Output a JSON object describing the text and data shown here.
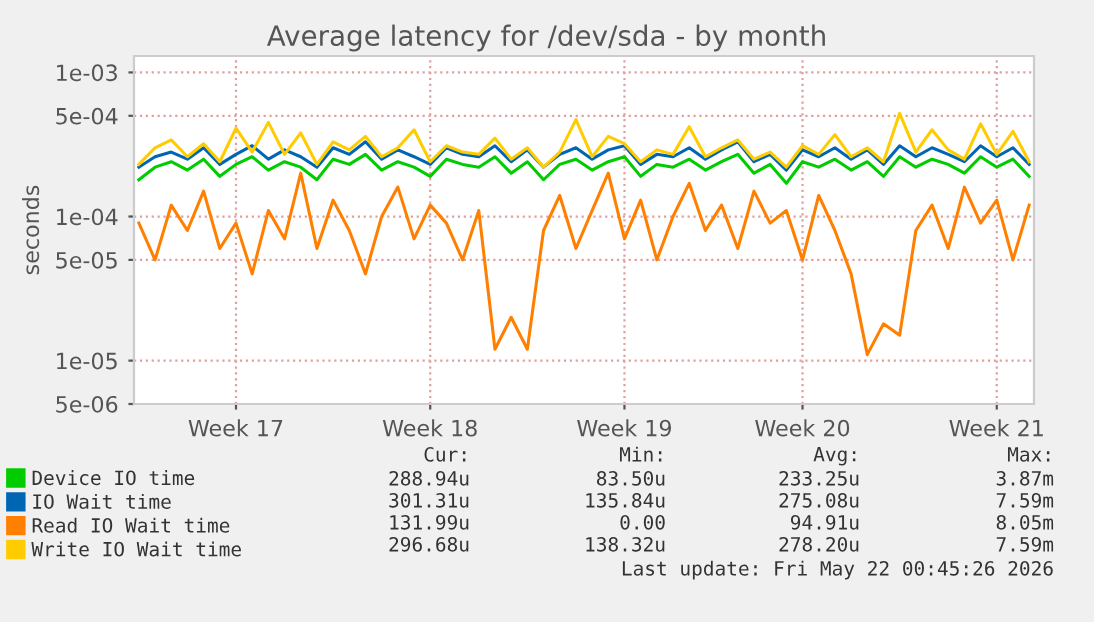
{
  "chart_data": {
    "type": "line",
    "title": "Average latency for /dev/sda - by month",
    "ylabel": "seconds",
    "categories": [
      null,
      null,
      null,
      null,
      null,
      null,
      "Week 17",
      null,
      null,
      null,
      null,
      null,
      null,
      null,
      null,
      null,
      null,
      null,
      "Week 18",
      null,
      null,
      null,
      null,
      null,
      null,
      null,
      null,
      null,
      null,
      null,
      "Week 19",
      null,
      null,
      null,
      null,
      null,
      null,
      null,
      null,
      null,
      null,
      "Week 20",
      null,
      null,
      null,
      null,
      null,
      null,
      null,
      null,
      null,
      null,
      null,
      "Week 21",
      null,
      null
    ],
    "series": [
      {
        "name": "Device IO time",
        "color": "#00cc00",
        "values": [
          0.00018,
          0.00022,
          0.00024,
          0.00021,
          0.00025,
          0.00019,
          0.00023,
          0.00026,
          0.00021,
          0.00024,
          0.00022,
          0.00018,
          0.00025,
          0.00023,
          0.00027,
          0.00021,
          0.00024,
          0.00022,
          0.00019,
          0.00025,
          0.00023,
          0.00022,
          0.00026,
          0.0002,
          0.00024,
          0.00018,
          0.00023,
          0.00025,
          0.00021,
          0.00024,
          0.00026,
          0.00019,
          0.00023,
          0.00022,
          0.00025,
          0.00021,
          0.00024,
          0.00027,
          0.0002,
          0.00023,
          0.00017,
          0.00024,
          0.00022,
          0.00025,
          0.00021,
          0.00024,
          0.00019,
          0.00026,
          0.00022,
          0.00025,
          0.00023,
          0.0002,
          0.00026,
          0.00022,
          0.00025,
          0.00019
        ]
      },
      {
        "name": "IO Wait time",
        "color": "#0066b3",
        "values": [
          0.00022,
          0.00026,
          0.00028,
          0.00025,
          0.0003,
          0.00023,
          0.00027,
          0.00031,
          0.00025,
          0.00029,
          0.00026,
          0.00022,
          0.0003,
          0.00027,
          0.00033,
          0.00025,
          0.00029,
          0.00026,
          0.00023,
          0.0003,
          0.00027,
          0.00026,
          0.00031,
          0.00024,
          0.00029,
          0.00022,
          0.00027,
          0.0003,
          0.00025,
          0.00029,
          0.00031,
          0.00023,
          0.00027,
          0.00026,
          0.0003,
          0.00025,
          0.00029,
          0.00033,
          0.00024,
          0.00027,
          0.00021,
          0.00029,
          0.00026,
          0.0003,
          0.00025,
          0.00029,
          0.00023,
          0.00031,
          0.00026,
          0.0003,
          0.00027,
          0.00024,
          0.00031,
          0.00026,
          0.0003,
          0.00023
        ]
      },
      {
        "name": "Read IO Wait time",
        "color": "#ff8000",
        "values": [
          9e-05,
          5e-05,
          0.00012,
          8e-05,
          0.00015,
          6e-05,
          9e-05,
          4e-05,
          0.00011,
          7e-05,
          0.0002,
          6e-05,
          0.00013,
          8e-05,
          4e-05,
          0.0001,
          0.00016,
          7e-05,
          0.00012,
          9e-05,
          5e-05,
          0.00011,
          1.2e-05,
          2e-05,
          1.2e-05,
          8e-05,
          0.00014,
          6e-05,
          0.00011,
          0.0002,
          7e-05,
          0.00013,
          5e-05,
          0.0001,
          0.00017,
          8e-05,
          0.00012,
          6e-05,
          0.00015,
          9e-05,
          0.00011,
          5e-05,
          0.00014,
          8e-05,
          4e-05,
          1.1e-05,
          1.8e-05,
          1.5e-05,
          8e-05,
          0.00012,
          6e-05,
          0.00016,
          9e-05,
          0.00013,
          5e-05,
          0.00012
        ]
      },
      {
        "name": "Write IO Wait time",
        "color": "#ffcc00",
        "values": [
          0.00023,
          0.0003,
          0.00034,
          0.00026,
          0.00032,
          0.00024,
          0.00041,
          0.00028,
          0.00045,
          0.00027,
          0.00038,
          0.00023,
          0.00033,
          0.00029,
          0.00036,
          0.00026,
          0.0003,
          0.0004,
          0.00024,
          0.00031,
          0.00028,
          0.00027,
          0.00035,
          0.00025,
          0.0003,
          0.00022,
          0.00028,
          0.00047,
          0.00026,
          0.00036,
          0.00032,
          0.00024,
          0.00029,
          0.00027,
          0.00042,
          0.00026,
          0.0003,
          0.00034,
          0.00025,
          0.00028,
          0.00022,
          0.00031,
          0.00027,
          0.00037,
          0.00026,
          0.0003,
          0.00024,
          0.00052,
          0.00028,
          0.0004,
          0.00029,
          0.00025,
          0.00044,
          0.00027,
          0.00039,
          0.00024
        ]
      }
    ],
    "log": "y",
    "ylim": [
      5e-06,
      0.0013
    ],
    "yticks": [
      {
        "value": 5e-06,
        "label": "5e-06"
      },
      {
        "value": 1e-05,
        "label": "1e-05"
      },
      {
        "value": 5e-05,
        "label": "5e-05"
      },
      {
        "value": 0.0001,
        "label": "1e-04"
      },
      {
        "value": 0.0005,
        "label": "5e-04"
      },
      {
        "value": 0.001,
        "label": "1e-03"
      }
    ],
    "grid": true,
    "legend": "bottom",
    "annotations": [
      "Cur:",
      "Min:",
      "Avg:",
      "Max:",
      "288.94u",
      "83.50u",
      "233.25u",
      "3.87m",
      "301.31u",
      "135.84u",
      "275.08u",
      "7.59m",
      "131.99u",
      "0.00",
      "94.91u",
      "8.05m",
      "296.68u",
      "138.32u",
      "278.20u",
      "7.59m",
      "Last update: Fri May 22 00:45:26 2026"
    ]
  }
}
